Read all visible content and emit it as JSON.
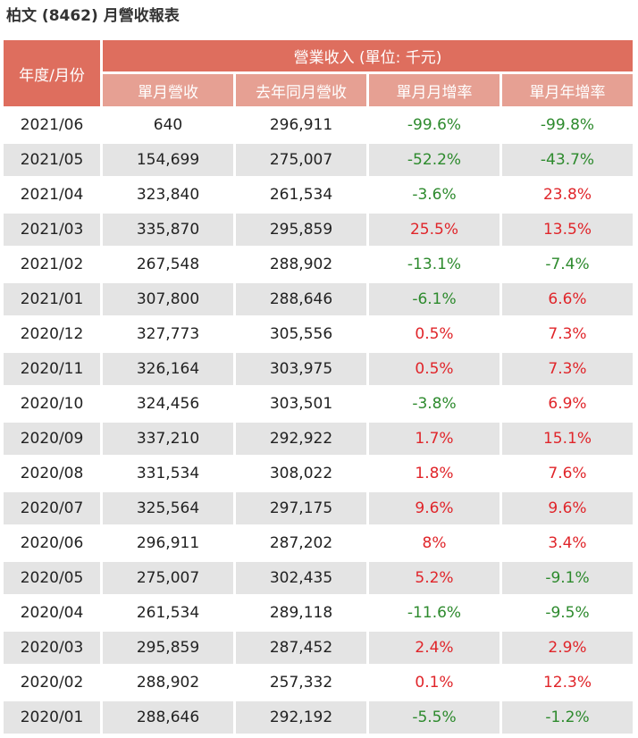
{
  "title": "柏文 (8462) 月營收報表",
  "colors": {
    "header_bg": "#de6e5e",
    "subheader_bg": "#e6a093",
    "stripe_bg": "#e4e4e4",
    "positive": "#e0252a",
    "negative": "#2d8a2d"
  },
  "table": {
    "year_month_header": "年度/月份",
    "group_header": "營業收入 (單位: 千元)",
    "sub_headers": [
      "單月營收",
      "去年同月營收",
      "單月月增率",
      "單月年增率"
    ],
    "rows": [
      {
        "period": "2021/06",
        "revenue": "640",
        "last_year": "296,911",
        "mom": "-99.6%",
        "yoy": "-99.8%"
      },
      {
        "period": "2021/05",
        "revenue": "154,699",
        "last_year": "275,007",
        "mom": "-52.2%",
        "yoy": "-43.7%"
      },
      {
        "period": "2021/04",
        "revenue": "323,840",
        "last_year": "261,534",
        "mom": "-3.6%",
        "yoy": "23.8%"
      },
      {
        "period": "2021/03",
        "revenue": "335,870",
        "last_year": "295,859",
        "mom": "25.5%",
        "yoy": "13.5%"
      },
      {
        "period": "2021/02",
        "revenue": "267,548",
        "last_year": "288,902",
        "mom": "-13.1%",
        "yoy": "-7.4%"
      },
      {
        "period": "2021/01",
        "revenue": "307,800",
        "last_year": "288,646",
        "mom": "-6.1%",
        "yoy": "6.6%"
      },
      {
        "period": "2020/12",
        "revenue": "327,773",
        "last_year": "305,556",
        "mom": "0.5%",
        "yoy": "7.3%"
      },
      {
        "period": "2020/11",
        "revenue": "326,164",
        "last_year": "303,975",
        "mom": "0.5%",
        "yoy": "7.3%"
      },
      {
        "period": "2020/10",
        "revenue": "324,456",
        "last_year": "303,501",
        "mom": "-3.8%",
        "yoy": "6.9%"
      },
      {
        "period": "2020/09",
        "revenue": "337,210",
        "last_year": "292,922",
        "mom": "1.7%",
        "yoy": "15.1%"
      },
      {
        "period": "2020/08",
        "revenue": "331,534",
        "last_year": "308,022",
        "mom": "1.8%",
        "yoy": "7.6%"
      },
      {
        "period": "2020/07",
        "revenue": "325,564",
        "last_year": "297,175",
        "mom": "9.6%",
        "yoy": "9.6%"
      },
      {
        "period": "2020/06",
        "revenue": "296,911",
        "last_year": "287,202",
        "mom": "8%",
        "yoy": "3.4%"
      },
      {
        "period": "2020/05",
        "revenue": "275,007",
        "last_year": "302,435",
        "mom": "5.2%",
        "yoy": "-9.1%"
      },
      {
        "period": "2020/04",
        "revenue": "261,534",
        "last_year": "289,118",
        "mom": "-11.6%",
        "yoy": "-9.5%"
      },
      {
        "period": "2020/03",
        "revenue": "295,859",
        "last_year": "287,452",
        "mom": "2.4%",
        "yoy": "2.9%"
      },
      {
        "period": "2020/02",
        "revenue": "288,902",
        "last_year": "257,332",
        "mom": "0.1%",
        "yoy": "12.3%"
      },
      {
        "period": "2020/01",
        "revenue": "288,646",
        "last_year": "292,192",
        "mom": "-5.5%",
        "yoy": "-1.2%"
      }
    ]
  }
}
